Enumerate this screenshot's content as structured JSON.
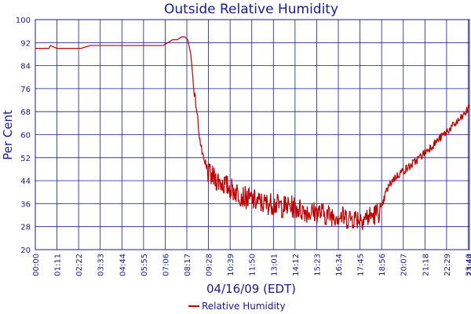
{
  "chart_data": {
    "type": "line",
    "title": "Outside Relative Humidity",
    "xlabel": "04/16/09 (EDT)",
    "ylabel": "Per Cent",
    "ylim": [
      20,
      100
    ],
    "yticks": [
      20,
      28,
      36,
      44,
      52,
      60,
      68,
      76,
      84,
      92,
      100
    ],
    "xlim_hours": [
      0,
      23.733
    ],
    "xtick_labels": [
      "00:00",
      "01:11",
      "02:22",
      "03:33",
      "04:44",
      "05:55",
      "07:06",
      "08:17",
      "09:28",
      "10:39",
      "11:50",
      "13:01",
      "14:12",
      "15:23",
      "16:34",
      "17:45",
      "18:56",
      "20:07",
      "21:18",
      "22:29",
      "23:40",
      "23:44"
    ],
    "grid": true,
    "legend_position": "bottom",
    "colors": {
      "series": "#c00000",
      "grid": "#1a1a8c",
      "text": "#1a1a8c"
    },
    "series": [
      {
        "name": "Relative Humidity",
        "x": [
          "00:00",
          "00:45",
          "00:50",
          "01:10",
          "01:30",
          "02:00",
          "02:30",
          "03:00",
          "03:30",
          "04:00",
          "05:00",
          "06:00",
          "07:00",
          "07:15",
          "07:30",
          "07:45",
          "08:00",
          "08:10",
          "08:20",
          "08:30",
          "08:40",
          "08:50",
          "09:00",
          "09:05",
          "09:10",
          "09:20",
          "09:30",
          "09:45",
          "10:00",
          "10:30",
          "11:00",
          "11:30",
          "12:00",
          "12:30",
          "13:00",
          "13:30",
          "14:00",
          "14:30",
          "15:00",
          "15:30",
          "16:00",
          "16:30",
          "17:00",
          "17:30",
          "18:00",
          "18:30",
          "18:56",
          "19:10",
          "19:30",
          "20:00",
          "20:30",
          "21:00",
          "21:30",
          "22:00",
          "22:30",
          "23:00",
          "23:20",
          "23:40",
          "23:44"
        ],
        "values": [
          90,
          90,
          91,
          90,
          90,
          90,
          90,
          91,
          91,
          91,
          91,
          91,
          91,
          92,
          93,
          93,
          94,
          94,
          93,
          88,
          76,
          68,
          58,
          55,
          52,
          48,
          46,
          45,
          44,
          42,
          40,
          38,
          37,
          36,
          36,
          35,
          35,
          34,
          33,
          33,
          32,
          32,
          31,
          31,
          31,
          32,
          34,
          40,
          44,
          47,
          49,
          52,
          55,
          58,
          61,
          64,
          66,
          69,
          70
        ]
      }
    ]
  }
}
